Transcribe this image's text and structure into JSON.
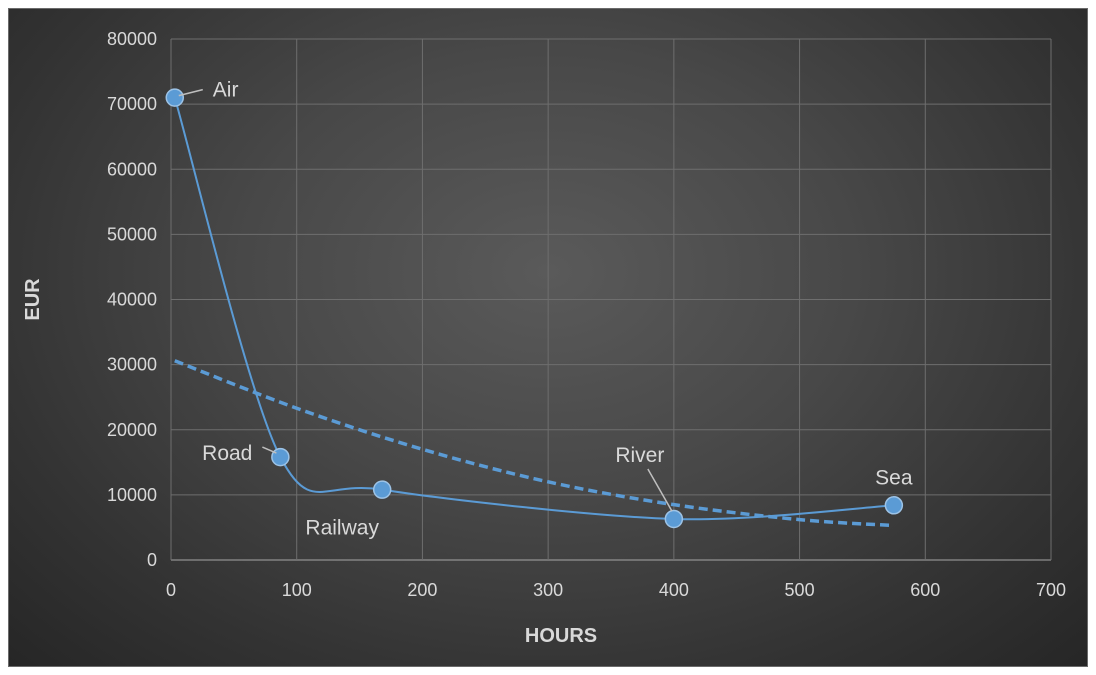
{
  "chart_data": {
    "type": "scatter",
    "title": "",
    "xlabel": "HOURS",
    "ylabel": "EUR",
    "xlim": [
      0,
      700
    ],
    "ylim": [
      0,
      80000
    ],
    "x_ticks": [
      0,
      100,
      200,
      300,
      400,
      500,
      600,
      700
    ],
    "y_ticks": [
      0,
      10000,
      20000,
      30000,
      40000,
      50000,
      60000,
      70000,
      80000
    ],
    "grid": true,
    "legend": "none",
    "series": [
      {
        "style": "smooth-line-with-markers",
        "color": "#5b9bd5",
        "points": [
          {
            "x": 3,
            "y": 71000,
            "label": "Air"
          },
          {
            "x": 87,
            "y": 15800,
            "label": "Road"
          },
          {
            "x": 168,
            "y": 10800,
            "label": "Railway"
          },
          {
            "x": 400,
            "y": 6300,
            "label": "River"
          },
          {
            "x": 575,
            "y": 8400,
            "label": "Sea"
          }
        ]
      }
    ],
    "trendline": {
      "style": "dashed",
      "color": "#5b9bd5",
      "type": "polynomial",
      "points": [
        {
          "x": 3,
          "y": 30600
        },
        {
          "x": 100,
          "y": 23300
        },
        {
          "x": 200,
          "y": 17000
        },
        {
          "x": 300,
          "y": 12000
        },
        {
          "x": 400,
          "y": 8500
        },
        {
          "x": 500,
          "y": 6200
        },
        {
          "x": 575,
          "y": 5300
        }
      ]
    }
  }
}
